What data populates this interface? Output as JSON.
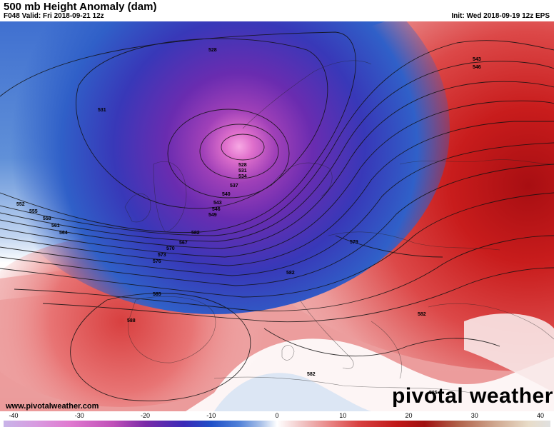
{
  "header": {
    "title": "500 mb Height Anomaly (dam)",
    "valid": "F048 Valid: Fri 2018-09-21 12z",
    "init": "Init: Wed 2018-09-19 12z EPS"
  },
  "footer": {
    "website": "www.pivotalweather.com",
    "brand": "pivotal weather"
  },
  "colorbar": {
    "ticks": [
      "-40",
      "-30",
      "-20",
      "-10",
      "0",
      "10",
      "20",
      "30",
      "40"
    ],
    "min": -40,
    "max": 40,
    "colors": [
      "#c8b4e8",
      "#d89ae0",
      "#e07ad0",
      "#c050b8",
      "#7a2aa8",
      "#3a2ab8",
      "#2050c8",
      "#5080d8",
      "#a8c0e8",
      "#ffffff",
      "#f0c0c0",
      "#e88080",
      "#d84040",
      "#c01818",
      "#a01010",
      "#b06048",
      "#d0a890",
      "#e8dcc8",
      "#e0e0e0"
    ]
  },
  "contour_labels": [
    "528",
    "531",
    "543",
    "546",
    "528",
    "531",
    "534",
    "537",
    "540",
    "543",
    "546",
    "549",
    "552",
    "555",
    "558",
    "561",
    "564",
    "567",
    "570",
    "573",
    "576",
    "579",
    "582",
    "585",
    "588",
    "582",
    "582",
    "582",
    "585",
    "552",
    "555",
    "558",
    "561",
    "564"
  ],
  "colors": {
    "trough_core": "#f080d8",
    "ridge_core": "#b81818",
    "neutral": "#ffffff"
  }
}
